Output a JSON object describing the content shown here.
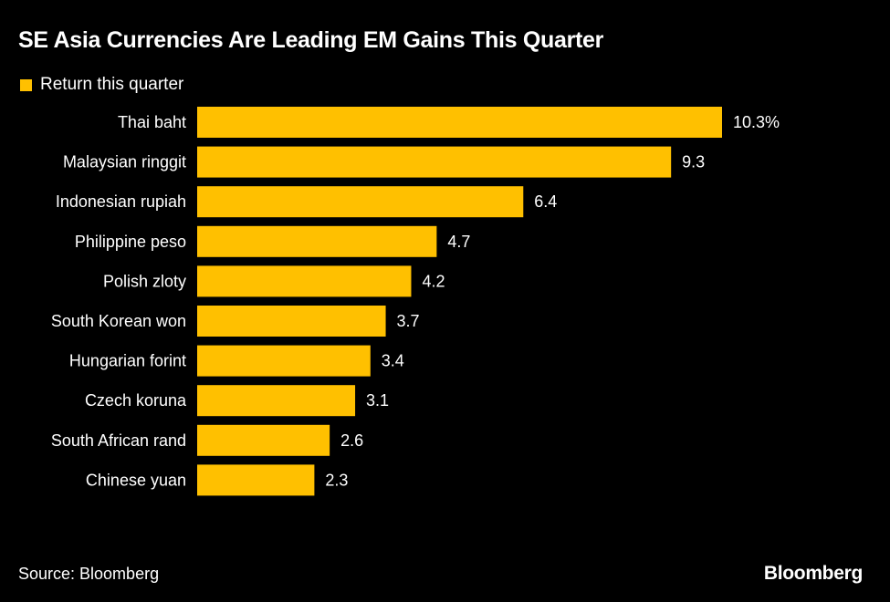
{
  "colors": {
    "background": "#000000",
    "bar": "#FFC000",
    "text": "#FFFFFF"
  },
  "chart_data": {
    "type": "bar",
    "orientation": "horizontal",
    "title": "SE Asia Currencies Are Leading EM Gains This Quarter",
    "legend": [
      "Return this quarter"
    ],
    "legend_position": "top-left",
    "grid": false,
    "categories": [
      "Thai baht",
      "Malaysian ringgit",
      "Indonesian rupiah",
      "Philippine peso",
      "Polish zloty",
      "South Korean won",
      "Hungarian forint",
      "Czech koruna",
      "South African rand",
      "Chinese yuan"
    ],
    "series": [
      {
        "name": "Return this quarter",
        "values": [
          10.3,
          9.3,
          6.4,
          4.7,
          4.2,
          3.7,
          3.4,
          3.1,
          2.6,
          2.3
        ]
      }
    ],
    "data_labels": [
      "10.3%",
      "9.3",
      "6.4",
      "4.7",
      "4.2",
      "3.7",
      "3.4",
      "3.1",
      "2.6",
      "2.3"
    ],
    "xlim": [
      0,
      10.3
    ]
  },
  "footer": {
    "source": "Source: Bloomberg",
    "brand": "Bloomberg"
  }
}
